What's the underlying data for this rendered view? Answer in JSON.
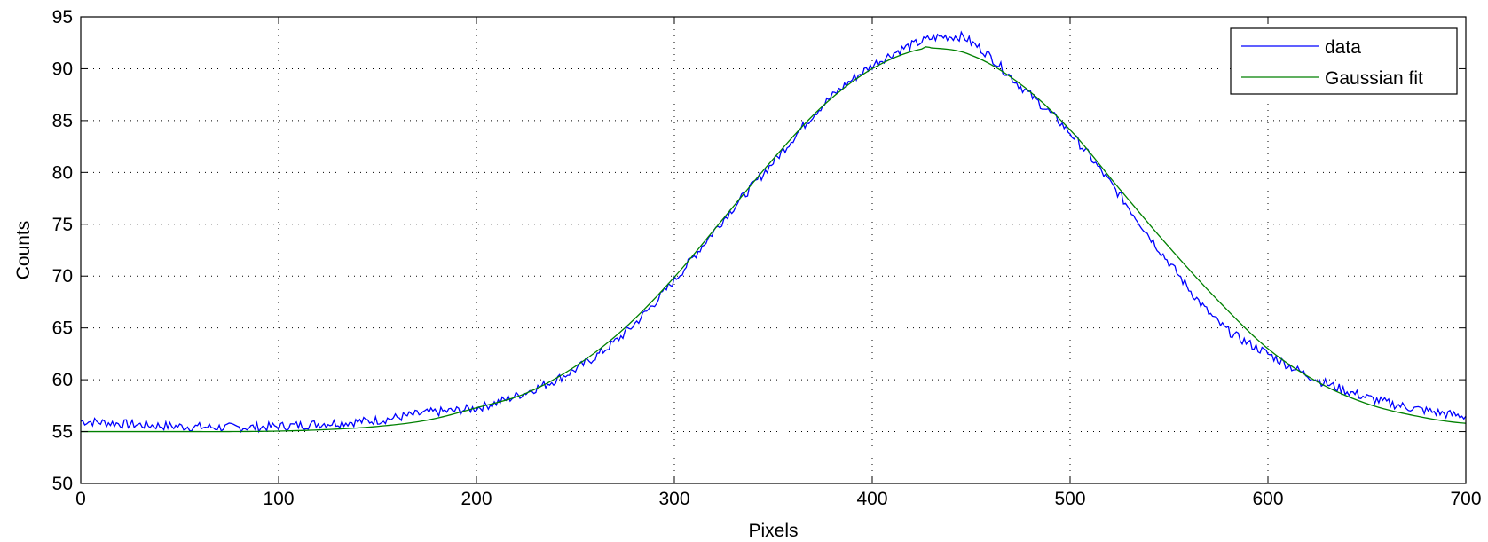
{
  "chart_data": {
    "type": "line",
    "title": "",
    "xlabel": "Pixels",
    "ylabel": "Counts",
    "xlim": [
      0,
      700
    ],
    "ylim": [
      50,
      95
    ],
    "xticks": [
      0,
      100,
      200,
      300,
      400,
      500,
      600,
      700
    ],
    "yticks": [
      50,
      55,
      60,
      65,
      70,
      75,
      80,
      85,
      90,
      95
    ],
    "grid": true,
    "legend_position": "top-right",
    "series": [
      {
        "name": "data",
        "color": "#0000ff",
        "x": [
          0,
          25,
          50,
          75,
          100,
          125,
          150,
          175,
          200,
          225,
          250,
          275,
          300,
          325,
          350,
          375,
          400,
          425,
          440,
          450,
          475,
          500,
          525,
          550,
          575,
          600,
          625,
          650,
          675,
          700
        ],
        "values": [
          56.0,
          55.7,
          55.5,
          55.4,
          55.5,
          55.8,
          56.1,
          56.8,
          57.3,
          58.8,
          61.0,
          64.5,
          69.6,
          75.5,
          81.0,
          86.5,
          90.3,
          92.6,
          93.1,
          92.5,
          88.3,
          83.8,
          77.8,
          71.3,
          65.5,
          62.5,
          60.0,
          58.3,
          57.2,
          56.5
        ]
      },
      {
        "name": "Gaussian fit",
        "color": "#008000",
        "x": [
          0,
          25,
          50,
          75,
          100,
          125,
          150,
          175,
          200,
          225,
          250,
          275,
          300,
          325,
          350,
          375,
          400,
          425,
          430,
          450,
          475,
          500,
          525,
          550,
          575,
          600,
          625,
          650,
          675,
          700
        ],
        "values": [
          55.0,
          55.0,
          55.0,
          55.0,
          55.05,
          55.2,
          55.5,
          56.1,
          57.3,
          58.7,
          61.3,
          65.0,
          69.9,
          75.6,
          81.3,
          86.4,
          90.0,
          91.9,
          92.0,
          91.3,
          88.5,
          84.1,
          78.4,
          72.8,
          67.6,
          63.0,
          59.8,
          57.7,
          56.5,
          55.8
        ]
      }
    ]
  }
}
